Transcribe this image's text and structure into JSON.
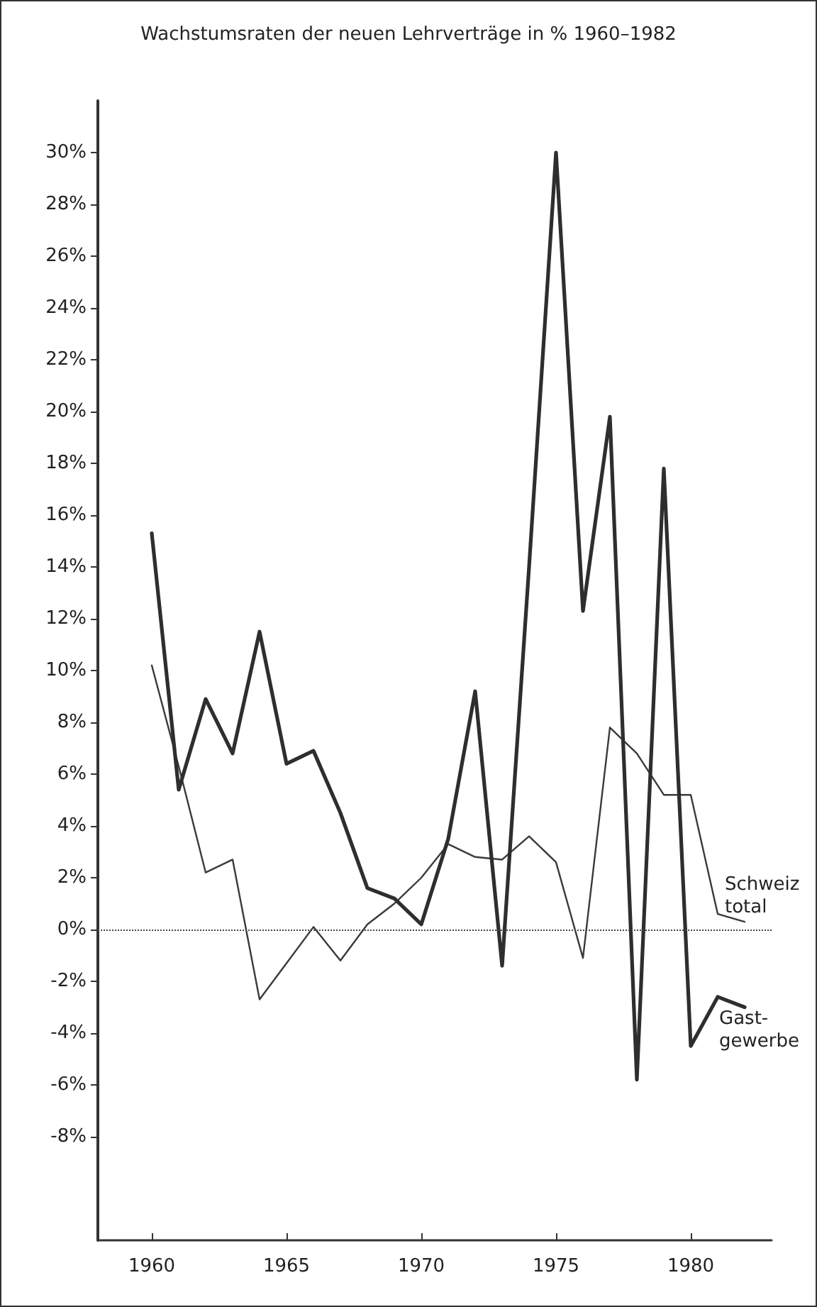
{
  "chart_data": {
    "type": "line",
    "title": "Wachstumsraten der neuen Lehrverträge in % 1960–1982",
    "x": [
      1960,
      1961,
      1962,
      1963,
      1964,
      1965,
      1966,
      1967,
      1968,
      1969,
      1970,
      1971,
      1972,
      1973,
      1974,
      1975,
      1976,
      1977,
      1978,
      1979,
      1980,
      1981,
      1982
    ],
    "series": [
      {
        "name": "Schweiz\ntotal",
        "color": "#3a3a3a",
        "values": [
          10.2,
          6.3,
          2.2,
          2.7,
          -2.7,
          -1.3,
          0.1,
          -1.2,
          0.2,
          1.0,
          2.0,
          3.3,
          2.8,
          2.7,
          3.6,
          2.6,
          -1.1,
          7.8,
          6.8,
          5.2,
          5.2,
          0.6,
          0.3
        ]
      },
      {
        "name": "Gast-\ngewerbe",
        "color": "#2e2e2e",
        "values": [
          15.3,
          5.4,
          8.9,
          6.8,
          11.5,
          6.4,
          6.9,
          4.5,
          1.6,
          1.2,
          0.2,
          3.5,
          9.2,
          -1.4,
          14,
          30,
          12.3,
          19.8,
          -5.8,
          17.8,
          -4.5,
          -2.6,
          -3.0
        ]
      }
    ],
    "xlim": [
      1958,
      1983
    ],
    "xticks": [
      1960,
      1965,
      1970,
      1975,
      1980
    ],
    "ylim": [
      -12,
      32
    ],
    "yticks": [
      {
        "value": -8,
        "label": "-8%"
      },
      {
        "value": -6,
        "label": "-6%"
      },
      {
        "value": -4,
        "label": "-4%"
      },
      {
        "value": -2,
        "label": "-2%"
      },
      {
        "value": 0,
        "label": "0%"
      },
      {
        "value": 2,
        "label": "2%"
      },
      {
        "value": 4,
        "label": "4%"
      },
      {
        "value": 6,
        "label": "6%"
      },
      {
        "value": 8,
        "label": "8%"
      },
      {
        "value": 10,
        "label": "10%"
      },
      {
        "value": 12,
        "label": "12%"
      },
      {
        "value": 14,
        "label": "14%"
      },
      {
        "value": 16,
        "label": "16%"
      },
      {
        "value": 18,
        "label": "18%"
      },
      {
        "value": 20,
        "label": "20%"
      },
      {
        "value": 22,
        "label": "22%"
      },
      {
        "value": 24,
        "label": "24%"
      },
      {
        "value": 26,
        "label": "26%"
      },
      {
        "value": 28,
        "label": "28%"
      },
      {
        "value": 30,
        "label": "30%"
      }
    ],
    "ref_lines": [
      {
        "axis": "y",
        "value": 0,
        "line_style": "dotted",
        "color": "#444444"
      }
    ],
    "grid": false,
    "legend": false,
    "marker": "none"
  }
}
